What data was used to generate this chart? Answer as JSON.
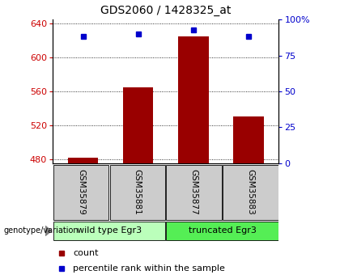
{
  "title": "GDS2060 / 1428325_at",
  "samples": [
    "GSM35879",
    "GSM35881",
    "GSM35877",
    "GSM35883"
  ],
  "counts": [
    482,
    565,
    625,
    530
  ],
  "percentiles": [
    88,
    90,
    93,
    88
  ],
  "ylim_left": [
    475,
    645
  ],
  "ylim_right": [
    0,
    100
  ],
  "yticks_left": [
    480,
    520,
    560,
    600,
    640
  ],
  "yticks_right": [
    0,
    25,
    50,
    75,
    100
  ],
  "groups": [
    {
      "label": "wild type Egr3",
      "indices": [
        0,
        1
      ],
      "color": "#bbffbb"
    },
    {
      "label": "truncated Egr3",
      "indices": [
        2,
        3
      ],
      "color": "#55ee55"
    }
  ],
  "bar_color": "#990000",
  "point_color": "#0000cc",
  "bar_width": 0.55,
  "group_header_bg": "#cccccc",
  "tick_label_color_left": "#cc0000",
  "tick_label_color_right": "#0000cc",
  "genotype_label": "genotype/variation",
  "legend_count_label": "count",
  "legend_pct_label": "percentile rank within the sample",
  "title_fontsize": 10,
  "tick_fontsize": 8,
  "sample_label_fontsize": 7.5,
  "group_label_fontsize": 8,
  "legend_fontsize": 8
}
